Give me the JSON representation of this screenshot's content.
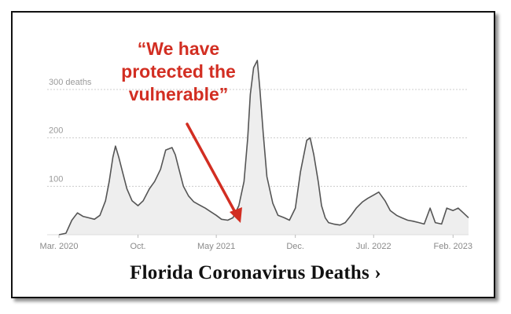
{
  "chart_data": {
    "type": "area",
    "title": "Florida Coronavirus Deaths ›",
    "xlabel": "",
    "ylabel": "",
    "ylim": [
      0,
      380
    ],
    "yticks": [
      {
        "value": 300,
        "label": "300 deaths"
      },
      {
        "value": 200,
        "label": "200"
      },
      {
        "value": 100,
        "label": "100"
      }
    ],
    "xticks": [
      {
        "value": "2020-03",
        "label": "Mar. 2020"
      },
      {
        "value": "2020-10",
        "label": "Oct."
      },
      {
        "value": "2021-05",
        "label": "May 2021"
      },
      {
        "value": "2021-12",
        "label": "Dec."
      },
      {
        "value": "2022-07",
        "label": "Jul. 2022"
      },
      {
        "value": "2023-02",
        "label": "Feb. 2023"
      }
    ],
    "grid": true,
    "x": [
      "2020-03-01",
      "2020-03-20",
      "2020-04-05",
      "2020-04-20",
      "2020-05-05",
      "2020-05-20",
      "2020-06-05",
      "2020-06-20",
      "2020-07-05",
      "2020-07-15",
      "2020-07-25",
      "2020-08-01",
      "2020-08-10",
      "2020-08-20",
      "2020-09-01",
      "2020-09-15",
      "2020-10-01",
      "2020-10-15",
      "2020-11-01",
      "2020-11-15",
      "2020-12-01",
      "2020-12-15",
      "2021-01-01",
      "2021-01-10",
      "2021-01-20",
      "2021-02-01",
      "2021-02-15",
      "2021-03-01",
      "2021-03-15",
      "2021-04-01",
      "2021-04-15",
      "2021-05-01",
      "2021-05-15",
      "2021-06-01",
      "2021-06-15",
      "2021-07-01",
      "2021-07-15",
      "2021-07-25",
      "2021-08-01",
      "2021-08-10",
      "2021-08-20",
      "2021-08-27",
      "2021-09-05",
      "2021-09-15",
      "2021-10-01",
      "2021-10-15",
      "2021-11-01",
      "2021-11-15",
      "2021-12-01",
      "2021-12-15",
      "2022-01-01",
      "2022-01-10",
      "2022-01-20",
      "2022-02-01",
      "2022-02-10",
      "2022-02-20",
      "2022-03-01",
      "2022-03-15",
      "2022-04-01",
      "2022-04-15",
      "2022-05-01",
      "2022-05-15",
      "2022-06-01",
      "2022-06-15",
      "2022-07-01",
      "2022-07-15",
      "2022-08-01",
      "2022-08-15",
      "2022-09-01",
      "2022-09-15",
      "2022-10-01",
      "2022-10-15",
      "2022-11-01",
      "2022-11-15",
      "2022-12-01",
      "2022-12-15",
      "2023-01-01",
      "2023-01-15",
      "2023-02-01",
      "2023-02-15",
      "2023-03-01",
      "2023-03-15"
    ],
    "values": [
      0,
      3,
      30,
      45,
      38,
      35,
      32,
      40,
      70,
      110,
      160,
      183,
      160,
      130,
      95,
      70,
      60,
      70,
      95,
      110,
      135,
      175,
      180,
      165,
      135,
      100,
      80,
      68,
      62,
      55,
      48,
      40,
      32,
      30,
      35,
      60,
      110,
      200,
      290,
      345,
      360,
      300,
      210,
      120,
      65,
      40,
      35,
      30,
      55,
      130,
      195,
      200,
      165,
      110,
      60,
      35,
      25,
      22,
      20,
      25,
      40,
      55,
      68,
      75,
      82,
      88,
      70,
      50,
      40,
      35,
      30,
      28,
      25,
      22,
      55,
      25,
      22,
      55,
      50,
      55,
      45,
      35
    ]
  },
  "annotation": {
    "lines": [
      "“We have",
      "protected the",
      "vulnerable”"
    ]
  },
  "colors": {
    "line": "#555555",
    "fill": "#eeeeee",
    "grid": "#cccccc",
    "annotation": "#d22e22"
  }
}
